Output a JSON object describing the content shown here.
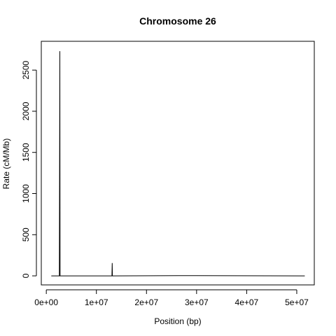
{
  "chart_data": {
    "type": "line",
    "title": "Chromosome 26",
    "xlabel": "Position (bp)",
    "ylabel": "Rate (cM/Mb)",
    "x_ticks": [
      0,
      10000000,
      20000000,
      30000000,
      40000000,
      50000000
    ],
    "x_tick_labels": [
      "0e+00",
      "1e+07",
      "2e+07",
      "3e+07",
      "4e+07",
      "5e+07"
    ],
    "y_ticks": [
      0,
      500,
      1000,
      1500,
      2000,
      2500
    ],
    "y_tick_labels": [
      "0",
      "500",
      "1000",
      "1500",
      "2000",
      "2500"
    ],
    "xlim": [
      -1000000,
      53500000
    ],
    "ylim": [
      -110,
      2850
    ],
    "series": [
      {
        "x": [
          1000000,
          2600000,
          2700000,
          2750000,
          2800000,
          13100000,
          13150000,
          13200000,
          13250000,
          30000000,
          51600000
        ],
        "y": [
          0,
          0,
          2730,
          0,
          0,
          0,
          155,
          0,
          0,
          3,
          0
        ]
      }
    ],
    "grid": false,
    "legend": "none"
  }
}
